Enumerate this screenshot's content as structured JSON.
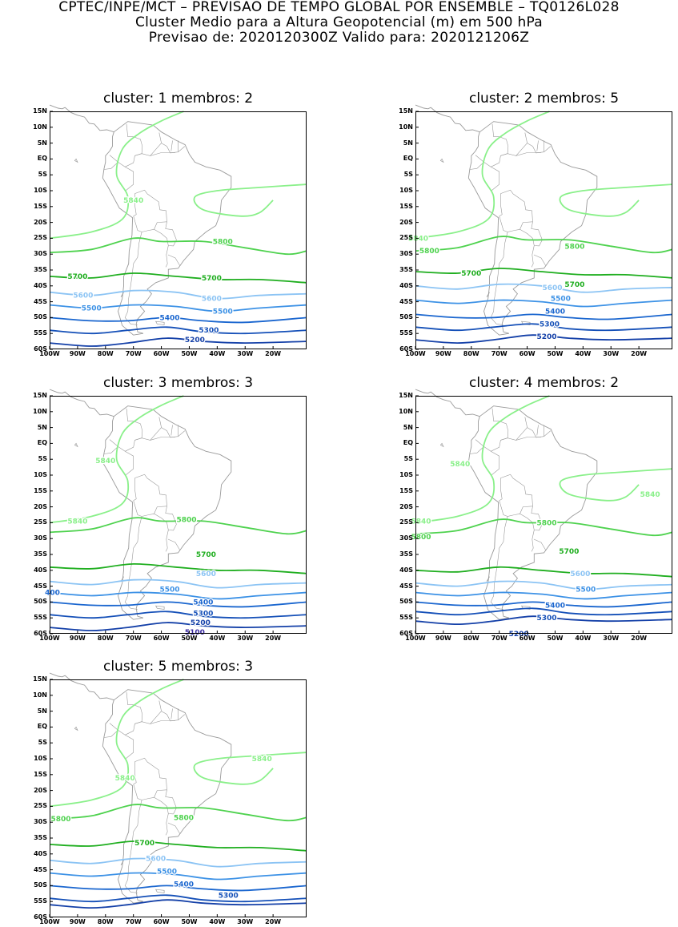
{
  "header": {
    "line1": "CPTEC/INPE/MCT – PREVISAO DE TEMPO GLOBAL POR ENSEMBLE – TQ0126L028",
    "line2": "Cluster Medio para a Altura Geopotencial (m) em 500 hPa",
    "line3": "Previsao de: 2020120300Z    Valido para: 2020121206Z"
  },
  "axes": {
    "lat_ticks": [
      "15N",
      "10N",
      "5N",
      "EQ",
      "5S",
      "10S",
      "15S",
      "20S",
      "25S",
      "30S",
      "35S",
      "40S",
      "45S",
      "50S",
      "55S",
      "60S"
    ],
    "lon_ticks": [
      "100W",
      "90W",
      "80W",
      "70W",
      "60W",
      "50W",
      "40W",
      "30W",
      "20W"
    ]
  },
  "colors": {
    "c5840": "#8af08a",
    "c5800": "#4ed24e",
    "c5700": "#1fae1f",
    "c5600": "#8cc4f4",
    "c5500": "#3d92e6",
    "c5400": "#1a66cf",
    "c5300": "#1550b8",
    "c5200": "#1440a8",
    "c5100": "#3a2aa0",
    "coast": "#9a9a9a"
  },
  "panels": [
    {
      "title": "cluster: 1   membros: 2",
      "labels": [
        {
          "text": "5840",
          "lon": -70,
          "lat": -13,
          "color": "c5840"
        },
        {
          "text": "5800",
          "lon": -38,
          "lat": -26,
          "color": "c5800"
        },
        {
          "text": "5700",
          "lon": -90,
          "lat": -37,
          "color": "c5700"
        },
        {
          "text": "5700",
          "lon": -42,
          "lat": -37.5,
          "color": "c5700"
        },
        {
          "text": "5600",
          "lon": -88,
          "lat": -43,
          "color": "c5600"
        },
        {
          "text": "5600",
          "lon": -42,
          "lat": -44,
          "color": "c5600"
        },
        {
          "text": "5500",
          "lon": -85,
          "lat": -47,
          "color": "c5500"
        },
        {
          "text": "5500",
          "lon": -38,
          "lat": -48,
          "color": "c5500"
        },
        {
          "text": "5400",
          "lon": -57,
          "lat": -50,
          "color": "c5400"
        },
        {
          "text": "5300",
          "lon": -43,
          "lat": -54,
          "color": "c5300"
        },
        {
          "text": "5200",
          "lon": -48,
          "lat": -57,
          "color": "c5200"
        }
      ]
    },
    {
      "title": "cluster: 2   membros: 5",
      "labels": [
        {
          "text": "5840",
          "lon": -99,
          "lat": -25,
          "color": "c5840"
        },
        {
          "text": "5800",
          "lon": -95,
          "lat": -29,
          "color": "c5800"
        },
        {
          "text": "5800",
          "lon": -43,
          "lat": -27.5,
          "color": "c5800"
        },
        {
          "text": "5700",
          "lon": -80,
          "lat": -36,
          "color": "c5700"
        },
        {
          "text": "5700",
          "lon": -43,
          "lat": -39.5,
          "color": "c5700"
        },
        {
          "text": "5600",
          "lon": -51,
          "lat": -40.5,
          "color": "c5600"
        },
        {
          "text": "5500",
          "lon": -48,
          "lat": -44,
          "color": "c5500"
        },
        {
          "text": "5400",
          "lon": -50,
          "lat": -48,
          "color": "c5400"
        },
        {
          "text": "5300",
          "lon": -52,
          "lat": -52,
          "color": "c5300"
        },
        {
          "text": "5200",
          "lon": -53,
          "lat": -56,
          "color": "c5200"
        }
      ]
    },
    {
      "title": "cluster: 3   membros: 3",
      "labels": [
        {
          "text": "5840",
          "lon": -80,
          "lat": -5.5,
          "color": "c5840"
        },
        {
          "text": "5840",
          "lon": -90,
          "lat": -24.5,
          "color": "c5840"
        },
        {
          "text": "5800",
          "lon": -51,
          "lat": -24,
          "color": "c5800"
        },
        {
          "text": "5700",
          "lon": -44,
          "lat": -35,
          "color": "c5700"
        },
        {
          "text": "5600",
          "lon": -44,
          "lat": -41,
          "color": "c5600"
        },
        {
          "text": "5500",
          "lon": -57,
          "lat": -46,
          "color": "c5500"
        },
        {
          "text": "400",
          "lon": -99,
          "lat": -47,
          "color": "c5400"
        },
        {
          "text": "5400",
          "lon": -45,
          "lat": -50,
          "color": "c5400"
        },
        {
          "text": "5300",
          "lon": -45,
          "lat": -53.5,
          "color": "c5300"
        },
        {
          "text": "5200",
          "lon": -46,
          "lat": -56.5,
          "color": "c5200"
        },
        {
          "text": "5100",
          "lon": -48,
          "lat": -59.5,
          "color": "c5100"
        }
      ]
    },
    {
      "title": "cluster: 4   membros: 2",
      "labels": [
        {
          "text": "5840",
          "lon": -84,
          "lat": -6.5,
          "color": "c5840"
        },
        {
          "text": "5840",
          "lon": -16,
          "lat": -16,
          "color": "c5840"
        },
        {
          "text": "5840",
          "lon": -98,
          "lat": -24.5,
          "color": "c5840"
        },
        {
          "text": "5800",
          "lon": -98,
          "lat": -29.5,
          "color": "c5800"
        },
        {
          "text": "5800",
          "lon": -53,
          "lat": -25,
          "color": "c5800"
        },
        {
          "text": "5700",
          "lon": -45,
          "lat": -34,
          "color": "c5700"
        },
        {
          "text": "5600",
          "lon": -41,
          "lat": -41,
          "color": "c5600"
        },
        {
          "text": "5500",
          "lon": -39,
          "lat": -46,
          "color": "c5500"
        },
        {
          "text": "5400",
          "lon": -50,
          "lat": -51,
          "color": "c5400"
        },
        {
          "text": "5300",
          "lon": -53,
          "lat": -55,
          "color": "c5300"
        },
        {
          "text": "5200",
          "lon": -63,
          "lat": -60,
          "color": "c5200"
        }
      ]
    },
    {
      "title": "cluster: 5   membros: 3",
      "labels": [
        {
          "text": "5840",
          "lon": -24,
          "lat": -10,
          "color": "c5840"
        },
        {
          "text": "5840",
          "lon": -73,
          "lat": -16,
          "color": "c5840"
        },
        {
          "text": "5800",
          "lon": -96,
          "lat": -29,
          "color": "c5800"
        },
        {
          "text": "5800",
          "lon": -52,
          "lat": -28.5,
          "color": "c5800"
        },
        {
          "text": "5700",
          "lon": -66,
          "lat": -36.5,
          "color": "c5700"
        },
        {
          "text": "5600",
          "lon": -62,
          "lat": -41.5,
          "color": "c5600"
        },
        {
          "text": "5500",
          "lon": -58,
          "lat": -45.5,
          "color": "c5500"
        },
        {
          "text": "5400",
          "lon": -52,
          "lat": -49.5,
          "color": "c5400"
        },
        {
          "text": "5300",
          "lon": -36,
          "lat": -53,
          "color": "c5300"
        }
      ]
    }
  ]
}
